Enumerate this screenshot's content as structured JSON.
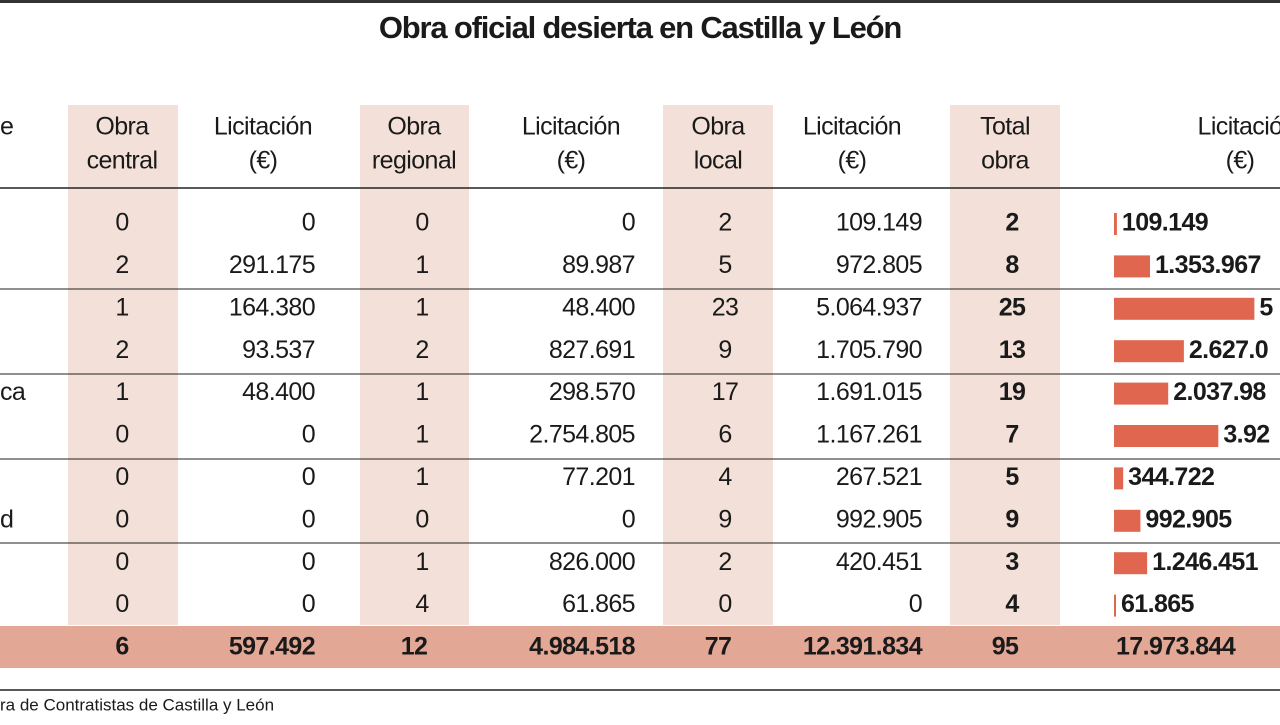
{
  "title": "Obra oficial desierta en Castilla y León",
  "headers": [
    [
      "e"
    ],
    [
      "Obra",
      "central"
    ],
    [
      "Licitación",
      "(€)"
    ],
    [
      "Obra",
      "regional"
    ],
    [
      "Licitación",
      "(€)"
    ],
    [
      "Obra",
      "local"
    ],
    [
      "Licitación",
      "(€)"
    ],
    [
      "Total",
      "obra"
    ],
    [
      "Licitació",
      "(€)"
    ]
  ],
  "rows": [
    {
      "cells": [
        "0",
        "0",
        "0",
        "0",
        "2",
        "109.149",
        "2"
      ],
      "total": "109.149",
      "bar": 109149
    },
    {
      "cells": [
        "2",
        "291.175",
        "1",
        "89.987",
        "5",
        "972.805",
        "8"
      ],
      "total": "1.353.967",
      "bar": 1353967
    },
    {
      "cells": [
        "1",
        "164.380",
        "1",
        "48.400",
        "23",
        "5.064.937",
        "25"
      ],
      "total": "5",
      "bar": 5277717
    },
    {
      "cells": [
        "2",
        "93.537",
        "2",
        "827.691",
        "9",
        "1.705.790",
        "13"
      ],
      "total": "2.627.0",
      "bar": 2627018
    },
    {
      "label": "ca",
      "cells": [
        "1",
        "48.400",
        "1",
        "298.570",
        "17",
        "1.691.015",
        "19"
      ],
      "total": "2.037.98",
      "bar": 2037985
    },
    {
      "cells": [
        "0",
        "0",
        "1",
        "2.754.805",
        "6",
        "1.167.261",
        "7"
      ],
      "total": "3.92",
      "bar": 3922066
    },
    {
      "cells": [
        "0",
        "0",
        "1",
        "77.201",
        "4",
        "267.521",
        "5"
      ],
      "total": "344.722",
      "bar": 344722
    },
    {
      "label": "d",
      "cells": [
        "0",
        "0",
        "0",
        "0",
        "9",
        "992.905",
        "9"
      ],
      "total": "992.905",
      "bar": 992905
    },
    {
      "cells": [
        "0",
        "0",
        "1",
        "826.000",
        "2",
        "420.451",
        "3"
      ],
      "total": "1.246.451",
      "bar": 1246451
    },
    {
      "cells": [
        "0",
        "0",
        "4",
        "61.865",
        "0",
        "0",
        "4"
      ],
      "total": "61.865",
      "bar": 61865
    }
  ],
  "totals": [
    "6",
    "597.492",
    "12",
    "4.984.518",
    "77",
    "12.391.834",
    "95",
    "17.973.844"
  ],
  "source": "ra de Contratistas de Castilla y León"
}
